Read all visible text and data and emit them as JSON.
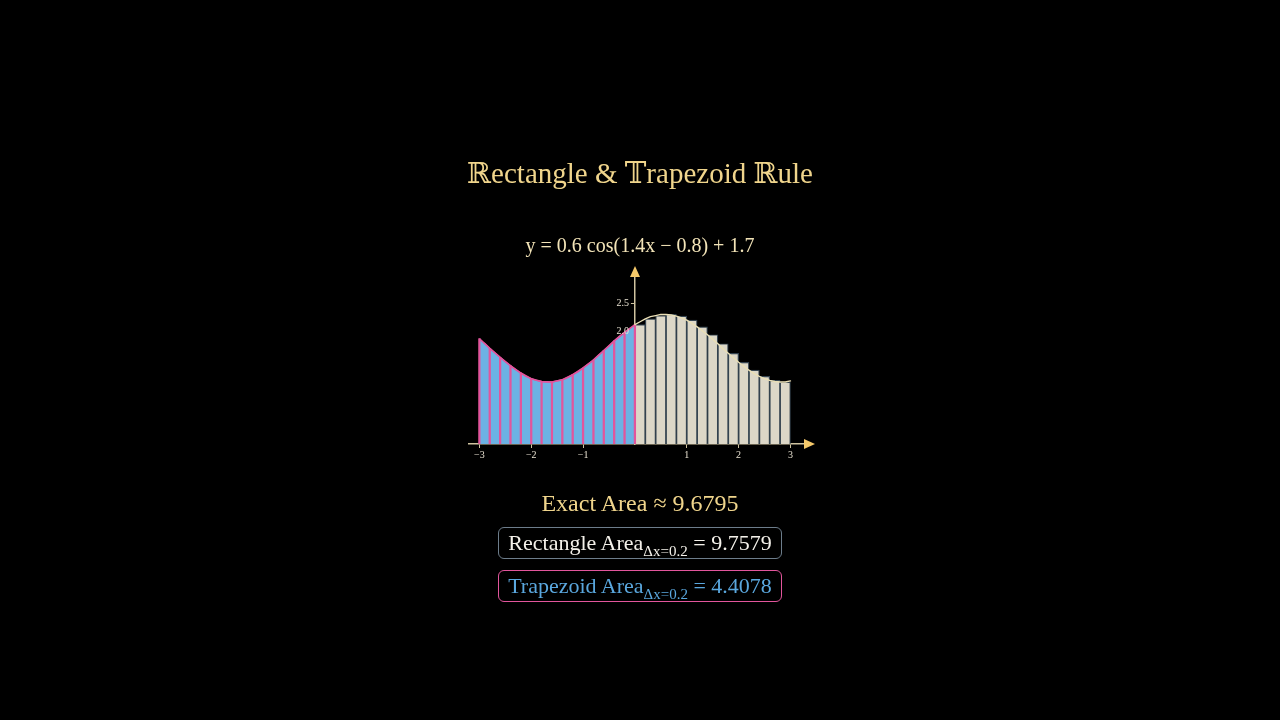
{
  "chart_data": {
    "type": "bar",
    "title": "ℝectangle & 𝕋rapezoid ℝule",
    "subtitle": "y = 0.6 cos(1.4x − 0.8) + 1.7",
    "annotations": [
      "Exact Area ≈ 9.6795",
      "Rectangle Area$_{Δx=0.2}$ = 9.7579",
      "Trapezoid Area$_{Δx=0.2}$ = 4.4078"
    ],
    "xlim": [
      -3.2,
      3.3
    ],
    "xticks": [
      {
        "value": -3,
        "label": "−3"
      },
      {
        "value": -2,
        "label": "−2"
      },
      {
        "value": -1,
        "label": "−1"
      },
      1,
      2,
      3
    ],
    "ylim": [
      0,
      3
    ],
    "yticks": [
      {
        "value": 2,
        "label": "2.0"
      },
      2.5
    ],
    "marker": "none",
    "legend": false,
    "series": [
      {
        "type": "area",
        "color": "#6cb2e4",
        "x": [
          -3,
          -2.8,
          -2.6,
          -2.4,
          -2.2,
          -2,
          -1.8,
          -1.6,
          -1.4,
          -1.2,
          -1,
          -0.8,
          -0.6,
          -0.4,
          -0.2,
          0
        ],
        "values": [
          1.87,
          1.7,
          1.54,
          1.39,
          1.26,
          1.16,
          1.11,
          1.1,
          1.14,
          1.23,
          1.35,
          1.49,
          1.66,
          1.83,
          1.98,
          2.12
        ]
      },
      {
        "type": "bar",
        "color": "#e2559c",
        "x": [
          -3,
          -2.8,
          -2.6,
          -2.4,
          -2.2,
          -2,
          -1.8,
          -1.6,
          -1.4,
          -1.2,
          -1,
          -0.8,
          -0.6,
          -0.4,
          -0.2,
          0
        ],
        "values": [
          1.87,
          1.7,
          1.54,
          1.39,
          1.26,
          1.16,
          1.11,
          1.1,
          1.14,
          1.23,
          1.35,
          1.49,
          1.66,
          1.83,
          1.98,
          2.12
        ]
      },
      {
        "color": "#dcd7c7",
        "x": [
          0.1,
          0.3,
          0.5,
          0.7,
          0.9,
          1.1,
          1.3,
          1.5,
          1.7,
          1.9,
          2.1,
          2.3,
          2.5,
          2.7,
          2.9
        ],
        "values": [
          2.12,
          2.22,
          2.28,
          2.3,
          2.27,
          2.2,
          2.08,
          1.94,
          1.78,
          1.61,
          1.45,
          1.31,
          1.2,
          1.13,
          1.1
        ]
      },
      {
        "type": "line",
        "color": "#e2559c",
        "x": [
          -2.9,
          -2.8,
          -2.7,
          -2.6,
          -2.5,
          -2.4,
          -2.3,
          -2.2,
          -2.1,
          -2,
          -1.9,
          -1.8,
          -1.7,
          -1.6,
          -1.5,
          -1.4,
          -1.3,
          -1.2,
          -1.1,
          -1,
          -0.9,
          -0.8,
          -0.7,
          -0.6,
          -0.5,
          -0.4,
          -0.3,
          -0.2,
          -0.1
        ],
        "values": [
          1.79,
          1.7,
          1.62,
          1.54,
          1.46,
          1.39,
          1.32,
          1.26,
          1.2,
          1.16,
          1.13,
          1.11,
          1.1,
          1.1,
          1.12,
          1.14,
          1.18,
          1.23,
          1.28,
          1.35,
          1.42,
          1.49,
          1.58,
          1.66,
          1.74,
          1.83,
          1.91,
          1.98,
          2.05
        ]
      },
      {
        "type": "line",
        "color": "#eadfb5",
        "x": [
          0,
          0.1,
          0.2,
          0.3,
          0.4,
          0.5,
          0.6,
          0.7,
          0.8,
          0.9,
          1,
          1.1,
          1.2,
          1.3,
          1.4,
          1.5,
          1.6,
          1.7,
          1.8,
          1.9,
          2,
          2.1,
          2.2,
          2.3,
          2.4,
          2.5,
          2.6,
          2.7,
          2.8,
          2.9,
          3
        ],
        "values": [
          2.12,
          2.17,
          2.22,
          2.26,
          2.28,
          2.3,
          2.3,
          2.29,
          2.27,
          2.24,
          2.2,
          2.14,
          2.08,
          2.01,
          1.94,
          1.86,
          1.78,
          1.69,
          1.61,
          1.53,
          1.45,
          1.38,
          1.31,
          1.25,
          1.2,
          1.16,
          1.13,
          1.11,
          1.1,
          1.1,
          1.12
        ]
      }
    ]
  }
}
